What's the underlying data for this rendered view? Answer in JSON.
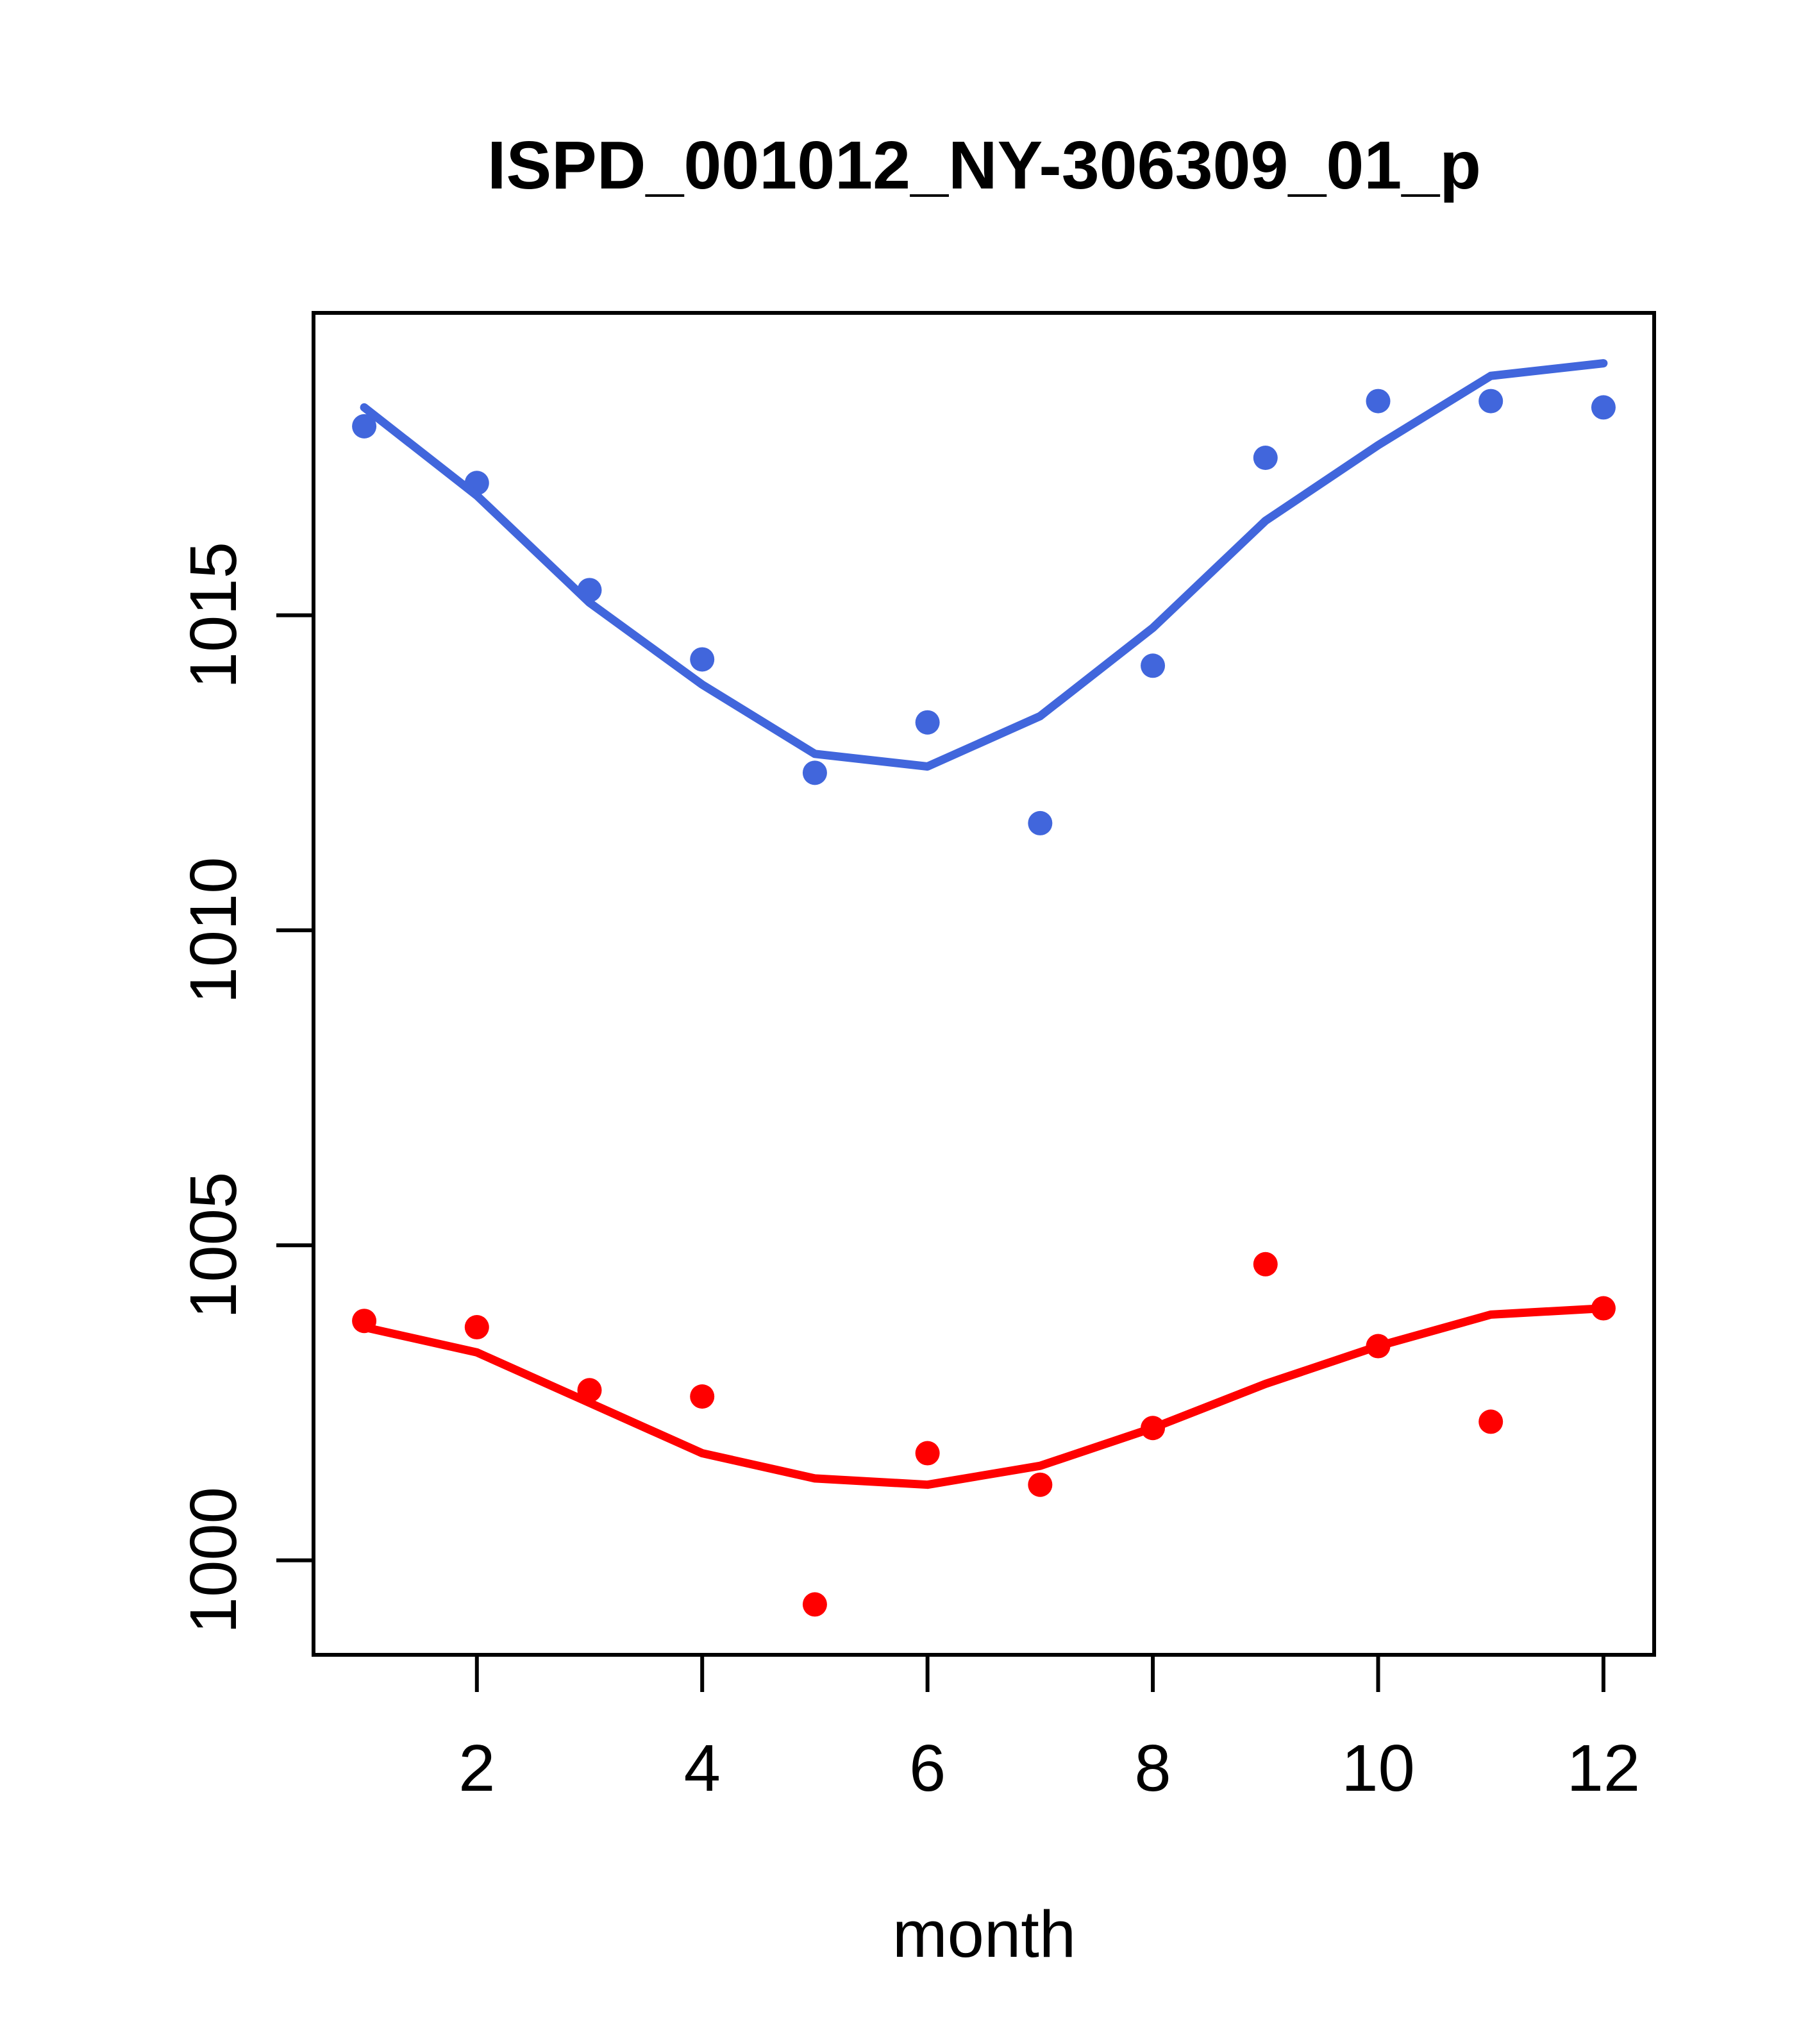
{
  "title": "ISPD_001012_NY-306309_01_p",
  "axes": {
    "x_label": "month",
    "y_label": ""
  },
  "colors": {
    "series_blue": "#4166DC",
    "series_red": "#FF0000",
    "axis": "#000000",
    "background": "#FFFFFF"
  },
  "chart_data": {
    "type": "scatter",
    "title": "ISPD_001012_NY-306309_01_p",
    "xlabel": "month",
    "ylabel": "",
    "xlim": [
      0.55,
      12.45
    ],
    "ylim": [
      998.5,
      1019.8
    ],
    "xticks": [
      2,
      4,
      6,
      8,
      10,
      12
    ],
    "yticks": [
      1000,
      1005,
      1010,
      1015
    ],
    "grid": false,
    "legend_position": "none",
    "x": [
      1,
      2,
      3,
      4,
      5,
      6,
      7,
      8,
      9,
      10,
      11,
      12
    ],
    "series": [
      {
        "name": "blue-points",
        "render": "points",
        "color": "#4166DC",
        "values": [
          1018.0,
          1017.1,
          1015.4,
          1014.3,
          1012.5,
          1013.3,
          1011.7,
          1014.2,
          1017.5,
          1018.4,
          1018.4,
          1018.3
        ]
      },
      {
        "name": "blue-smooth-line",
        "render": "line",
        "color": "#4166DC",
        "values": [
          1018.3,
          1016.9,
          1015.2,
          1013.9,
          1012.8,
          1012.6,
          1013.4,
          1014.8,
          1016.5,
          1017.7,
          1018.8,
          1019.0
        ]
      },
      {
        "name": "red-points",
        "render": "points",
        "color": "#FF0000",
        "values": [
          1003.8,
          1003.7,
          1002.7,
          1002.6,
          999.3,
          1001.7,
          1001.2,
          1002.1,
          1004.7,
          1003.4,
          1002.2,
          1004.0
        ]
      },
      {
        "name": "red-smooth-line",
        "render": "line",
        "color": "#FF0000",
        "values": [
          1003.7,
          1003.3,
          1002.5,
          1001.7,
          1001.3,
          1001.2,
          1001.5,
          1002.1,
          1002.8,
          1003.4,
          1003.9,
          1004.0
        ]
      }
    ]
  }
}
